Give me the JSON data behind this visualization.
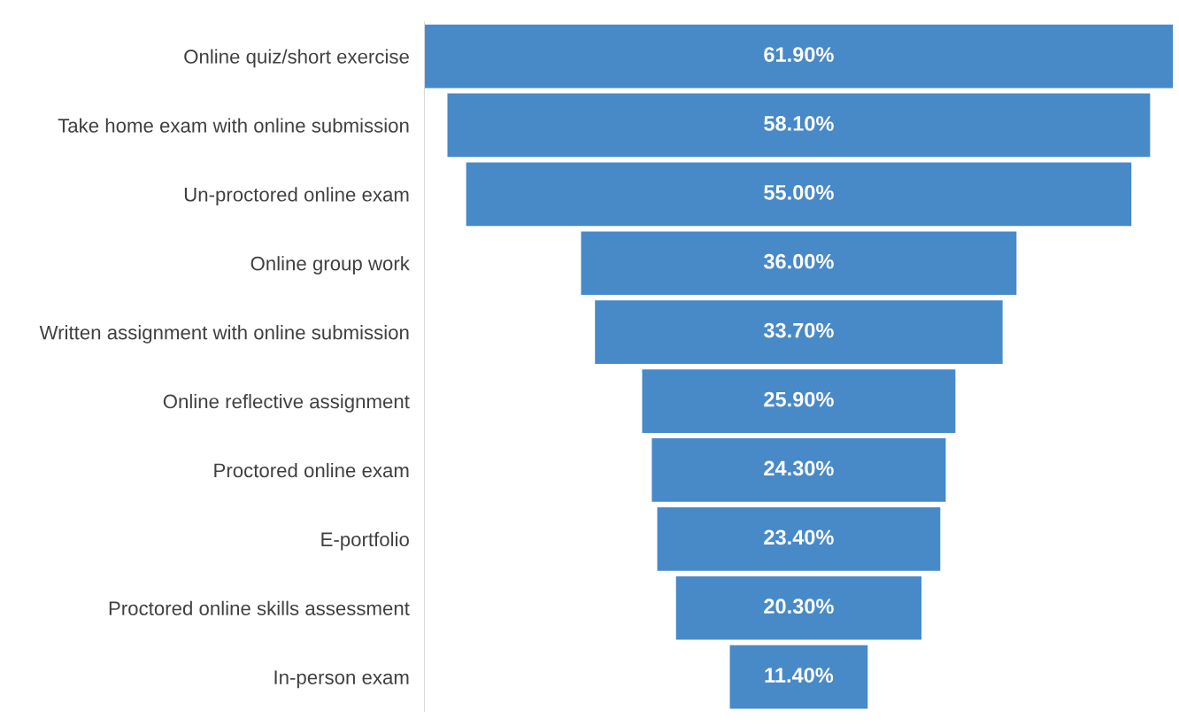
{
  "chart_data": {
    "type": "other",
    "categories": [
      "Online quiz/short exercise",
      "Take home exam with online submission",
      "Un-proctored online exam",
      "Online group work",
      "Written assignment with online submission",
      "Online reflective assignment",
      "Proctored online exam",
      "E-portfolio",
      "Proctored online skills assessment",
      "In-person exam"
    ],
    "values": [
      61.9,
      58.1,
      55.0,
      36.0,
      33.7,
      25.9,
      24.3,
      23.4,
      20.3,
      11.4
    ],
    "value_labels": [
      "61.90%",
      "58.10%",
      "55.00%",
      "36.00%",
      "33.70%",
      "25.90%",
      "24.30%",
      "23.40%",
      "20.30%",
      "11.40%"
    ],
    "color": "#4889c8"
  }
}
